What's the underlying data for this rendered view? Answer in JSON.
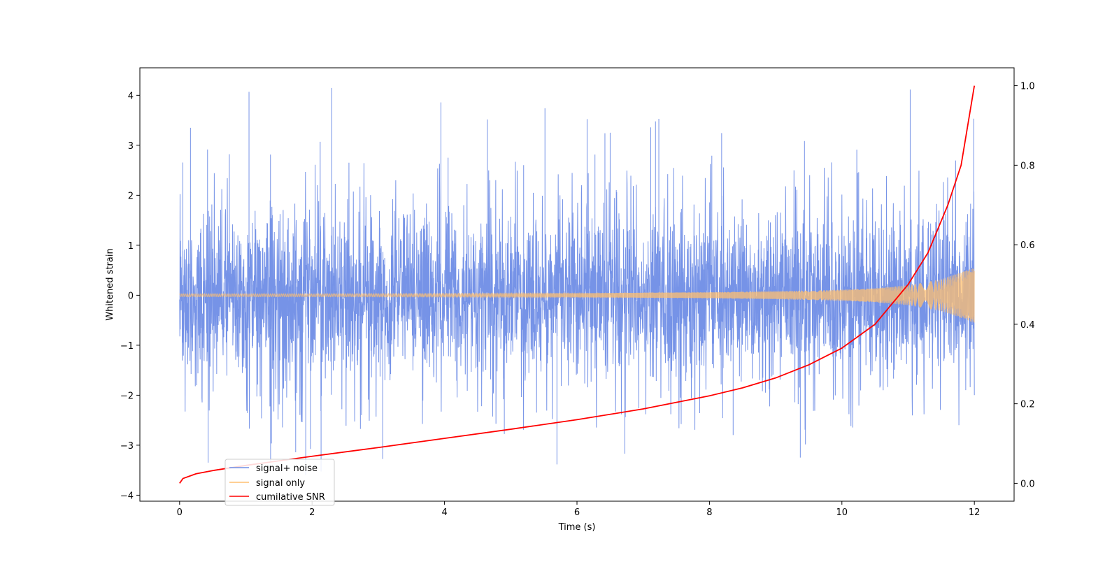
{
  "chart_data": {
    "type": "line",
    "title": "",
    "xlabel": "Time (s)",
    "ylabel": "Whitened strain",
    "ylabel_right": "",
    "xlim": [
      -0.6,
      12.6
    ],
    "ylim": [
      -4.12,
      4.55
    ],
    "ylim_right": [
      -0.045,
      1.045
    ],
    "xticks": [
      0,
      2,
      4,
      6,
      8,
      10,
      12
    ],
    "xtick_labels": [
      "0",
      "2",
      "4",
      "6",
      "8",
      "10",
      "12"
    ],
    "yticks": [
      -4,
      -3,
      -2,
      -1,
      0,
      1,
      2,
      3,
      4
    ],
    "ytick_labels": [
      "−4",
      "−3",
      "−2",
      "−1",
      "0",
      "1",
      "2",
      "3",
      "4"
    ],
    "yticks_right": [
      0.0,
      0.2,
      0.4,
      0.6,
      0.8,
      1.0
    ],
    "ytick_labels_right": [
      "0.0",
      "0.2",
      "0.4",
      "0.6",
      "0.8",
      "1.0"
    ],
    "grid": false,
    "legend_position": "lower-left",
    "series": [
      {
        "name": "signal+ noise",
        "axis": "left",
        "color": "#6f8de6",
        "style": "noisy band",
        "x_range": [
          0,
          12
        ],
        "typical_band": [
          -1.5,
          1.6
        ],
        "max": 4.15,
        "min": -3.72
      },
      {
        "name": "signal only",
        "axis": "left",
        "color": "#ffbf70",
        "style": "chirp",
        "x_range": [
          0,
          12
        ],
        "amplitude": [
          [
            0,
            0.03
          ],
          [
            2,
            0.03
          ],
          [
            4,
            0.035
          ],
          [
            6,
            0.04
          ],
          [
            8,
            0.06
          ],
          [
            9,
            0.08
          ],
          [
            10,
            0.11
          ],
          [
            10.5,
            0.14
          ],
          [
            11,
            0.2
          ],
          [
            11.5,
            0.32
          ],
          [
            12,
            0.55
          ]
        ]
      },
      {
        "name": "cumilative SNR",
        "axis": "right",
        "color": "#ff0000",
        "style": "line",
        "x": [
          0,
          0.05,
          0.25,
          0.5,
          1,
          2,
          3,
          4,
          5,
          6,
          7,
          8,
          8.5,
          9,
          9.5,
          10,
          10.5,
          11,
          11.3,
          11.6,
          11.8,
          12
        ],
        "y": [
          0.0,
          0.012,
          0.024,
          0.032,
          0.045,
          0.068,
          0.09,
          0.113,
          0.136,
          0.16,
          0.187,
          0.22,
          0.24,
          0.265,
          0.298,
          0.34,
          0.4,
          0.5,
          0.58,
          0.7,
          0.8,
          1.0
        ]
      }
    ]
  }
}
